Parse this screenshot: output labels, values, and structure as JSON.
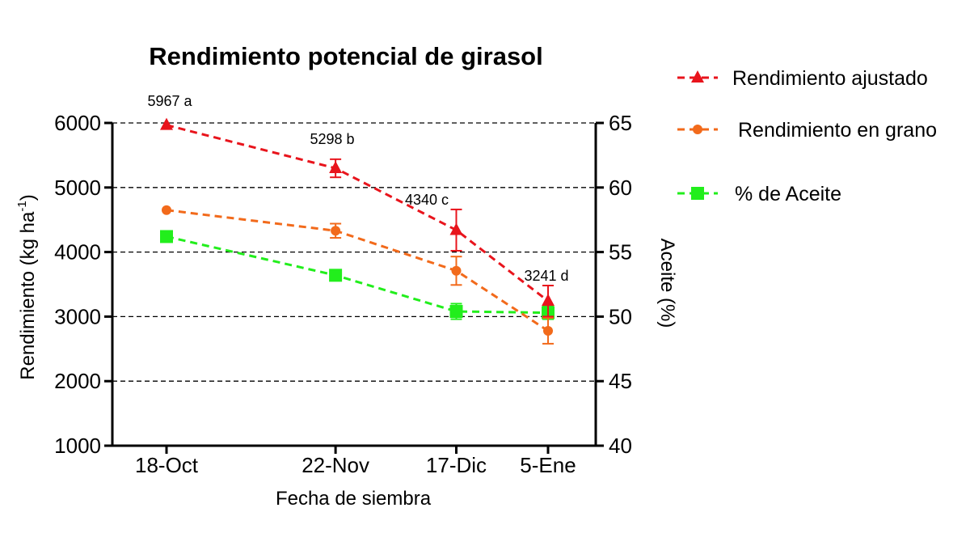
{
  "chart_data": {
    "type": "line",
    "title": "Rendimiento potencial de girasol",
    "xlabel": "Fecha de siembra",
    "ylabel": "Rendimiento (kg ha-1)",
    "ylabel_main": "Rendimiento (kg ha",
    "ylabel_sup": "-1",
    "ylabel_close": ")",
    "y2label": "Aceite (%)",
    "categories": [
      "18-Oct",
      "22-Nov",
      "17-Dic",
      "5-Ene"
    ],
    "x_days": [
      0,
      35,
      60,
      79
    ],
    "ylim": [
      1000,
      6000
    ],
    "y_ticks": [
      1000,
      2000,
      3000,
      4000,
      5000,
      6000
    ],
    "y2lim": [
      40,
      65
    ],
    "y2_ticks": [
      40,
      45,
      50,
      55,
      60,
      65
    ],
    "grid": "horizontal dashed",
    "legend_position": "right",
    "series": [
      {
        "name": "Rendimiento ajustado",
        "axis": "left",
        "marker": "triangle",
        "color": "#e8141c",
        "values": [
          5967,
          5298,
          4340,
          3241
        ],
        "errors": [
          0,
          140,
          320,
          240
        ],
        "labels": [
          "5967 a",
          "5298 b",
          "4340 c",
          "3241 d"
        ]
      },
      {
        "name": "Rendimiento en grano",
        "axis": "left",
        "marker": "circle",
        "color": "#f26a1b",
        "values": [
          4650,
          4330,
          3710,
          2780
        ],
        "errors": [
          0,
          110,
          220,
          200
        ],
        "labels": []
      },
      {
        "name": "% de Aceite",
        "axis": "right",
        "marker": "square",
        "color": "#22ee1c",
        "values": [
          56.2,
          53.2,
          50.4,
          50.3
        ],
        "errors": [
          0,
          0,
          0.6,
          0.5
        ],
        "labels": []
      }
    ]
  }
}
